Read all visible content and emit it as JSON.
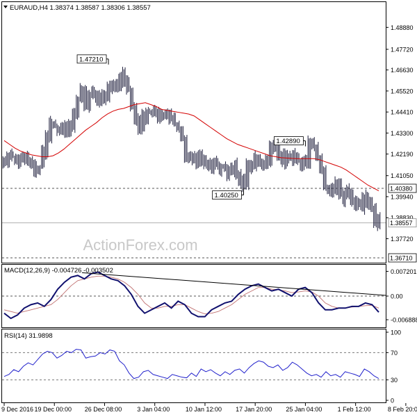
{
  "chart_data": [
    {
      "type": "candlestick",
      "title": "EURAUD,H4  1.38374  1.38587  1.38306  1.38557",
      "watermark": "ActionForex.com",
      "ylim": [
        1.3671,
        1.4981
      ],
      "y_ticks": [
        "1.48880",
        "1.47720",
        "1.46630",
        "1.45520",
        "1.44410",
        "1.43300",
        "1.42190",
        "1.41050",
        "1.39940",
        "1.38830",
        "1.37720"
      ],
      "y_tick_values": [
        1.4888,
        1.4772,
        1.4663,
        1.4552,
        1.4441,
        1.433,
        1.4219,
        1.4105,
        1.3994,
        1.3883,
        1.3772
      ],
      "x_ticks": [
        "9 Dec 2016",
        "19 Dec 00:00",
        "26 Dec 08:00",
        "3 Jan 04:00",
        "10 Jan 12:00",
        "17 Jan 20:00",
        "25 Jan 04:00",
        "1 Feb 12:00",
        "8 Feb 20:00"
      ],
      "x_tick_index": [
        0,
        13,
        26,
        39,
        52,
        65,
        78,
        91,
        104
      ],
      "price_series": {
        "name": "close",
        "values": [
          1.4175,
          1.42,
          1.421,
          1.419,
          1.4205,
          1.4185,
          1.42,
          1.4165,
          1.414,
          1.415,
          1.4235,
          1.432,
          1.439,
          1.436,
          1.433,
          1.4355,
          1.4325,
          1.437,
          1.442,
          1.451,
          1.456,
          1.449,
          1.453,
          1.455,
          1.45,
          1.454,
          1.451,
          1.456,
          1.458,
          1.459,
          1.464,
          1.459,
          1.456,
          1.447,
          1.44,
          1.435,
          1.442,
          1.444,
          1.445,
          1.443,
          1.442,
          1.44,
          1.445,
          1.44,
          1.438,
          1.435,
          1.43,
          1.421,
          1.419,
          1.422,
          1.417,
          1.42,
          1.418,
          1.415,
          1.418,
          1.415,
          1.416,
          1.414,
          1.413,
          1.415,
          1.411,
          1.408,
          1.404,
          1.415,
          1.417,
          1.419,
          1.418,
          1.415,
          1.42,
          1.425,
          1.427,
          1.422,
          1.42,
          1.419,
          1.422,
          1.419,
          1.417,
          1.416,
          1.419,
          1.428,
          1.425,
          1.42,
          1.415,
          1.405,
          1.402,
          1.403,
          1.406,
          1.4,
          1.399,
          1.402,
          1.398,
          1.395,
          1.394,
          1.399,
          1.396,
          1.393,
          1.388,
          1.385
        ]
      },
      "moving_average": {
        "values": [
          1.429,
          1.427,
          1.425,
          1.4235,
          1.4225,
          1.4215,
          1.421,
          1.4205,
          1.4205,
          1.421,
          1.4225,
          1.4245,
          1.427,
          1.4295,
          1.432,
          1.4345,
          1.4365,
          1.4385,
          1.441,
          1.443,
          1.4445,
          1.4455,
          1.446,
          1.447,
          1.448,
          1.4485,
          1.449,
          1.448,
          1.447,
          1.4455,
          1.445,
          1.4445,
          1.444,
          1.4435,
          1.443,
          1.442,
          1.44,
          1.438,
          1.436,
          1.434,
          1.432,
          1.43,
          1.4285,
          1.427,
          1.426,
          1.425,
          1.424,
          1.423,
          1.422,
          1.421,
          1.4205,
          1.42,
          1.4198,
          1.4196,
          1.4195,
          1.4195,
          1.4195,
          1.4195,
          1.419,
          1.418,
          1.417,
          1.416,
          1.415,
          1.4135,
          1.4115,
          1.4095,
          1.4075,
          1.4055,
          1.404,
          1.4025
        ]
      },
      "annotations": [
        {
          "label": "1.47210",
          "x_index": 27,
          "value": 1.4721
        },
        {
          "label": "1.42890",
          "x_index": 78,
          "value": 1.4289
        },
        {
          "label": "1.40250",
          "x_index": 62,
          "value": 1.4025
        }
      ],
      "horizontal_lines": [
        {
          "label": "1.40380",
          "value": 1.4038,
          "style": "dashed"
        },
        {
          "label": "1.36710",
          "value": 1.3671,
          "style": "dashed"
        },
        {
          "label": "1.38557",
          "value": 1.38557,
          "style": "solid",
          "current": true
        }
      ]
    },
    {
      "type": "line",
      "title": "MACD(12,26,9) -0.004726 -0.003502",
      "ylim": [
        -0.0085,
        0.0085
      ],
      "y_ticks": [
        "0.007201",
        "0.00",
        "-0.006888"
      ],
      "y_tick_values": [
        0.007201,
        0.0,
        -0.006888
      ],
      "series": [
        {
          "name": "MACD",
          "values": [
            -0.005,
            -0.0065,
            -0.0055,
            -0.0035,
            -0.0025,
            -0.002,
            -0.003,
            -0.001,
            0.002,
            0.004,
            0.0055,
            0.006,
            0.005,
            0.0065,
            0.007,
            0.006,
            0.005,
            0.0045,
            0.003,
            0.0005,
            -0.003,
            -0.005,
            -0.004,
            -0.003,
            -0.002,
            -0.0035,
            -0.0015,
            -0.0025,
            -0.005,
            -0.006,
            -0.006,
            -0.004,
            -0.003,
            -0.002,
            -0.0015,
            0.0005,
            0.002,
            0.003,
            0.0035,
            0.0025,
            0.0015,
            0.002,
            0.001,
            0.0,
            0.002,
            0.0025,
            0.001,
            -0.002,
            -0.004,
            -0.004,
            -0.0035,
            -0.0035,
            -0.003,
            -0.003,
            -0.002,
            -0.0025,
            -0.0047
          ]
        },
        {
          "name": "Signal",
          "values": [
            -0.004,
            -0.0045,
            -0.005,
            -0.0045,
            -0.004,
            -0.0035,
            -0.003,
            -0.0025,
            -0.001,
            0.001,
            0.003,
            0.0045,
            0.005,
            0.0055,
            0.0058,
            0.0058,
            0.0055,
            0.005,
            0.004,
            0.0025,
            0.0005,
            -0.002,
            -0.0035,
            -0.0035,
            -0.003,
            -0.003,
            -0.0025,
            -0.0025,
            -0.0035,
            -0.0045,
            -0.0052,
            -0.005,
            -0.0045,
            -0.0035,
            -0.0025,
            -0.001,
            0.0005,
            0.0015,
            0.0025,
            0.0025,
            0.002,
            0.0018,
            0.0015,
            0.001,
            0.0012,
            0.0015,
            0.0012,
            0.0,
            -0.002,
            -0.003,
            -0.0035,
            -0.0035,
            -0.0032,
            -0.003,
            -0.0028,
            -0.0027,
            -0.0035
          ]
        }
      ]
    },
    {
      "type": "line",
      "title": "RSI(14) 31.9898",
      "ylim": [
        0,
        100
      ],
      "y_ticks": [
        "100",
        "70",
        "30",
        "0"
      ],
      "y_tick_values": [
        100,
        70,
        30,
        0
      ],
      "series": [
        {
          "name": "RSI",
          "values": [
            35,
            38,
            45,
            42,
            50,
            55,
            52,
            60,
            68,
            72,
            70,
            62,
            66,
            72,
            70,
            75,
            74,
            62,
            64,
            65,
            70,
            68,
            74,
            72,
            58,
            52,
            40,
            32,
            34,
            42,
            44,
            38,
            36,
            34,
            32,
            38,
            36,
            34,
            33,
            40,
            35,
            46,
            42,
            45,
            40,
            36,
            42,
            38,
            44,
            46,
            40,
            48,
            54,
            58,
            56,
            50,
            48,
            52,
            44,
            48,
            56,
            52,
            46,
            40,
            36,
            38,
            34,
            42,
            36,
            38,
            34,
            42,
            40,
            38,
            35,
            46,
            42,
            36,
            32
          ]
        }
      ]
    }
  ]
}
